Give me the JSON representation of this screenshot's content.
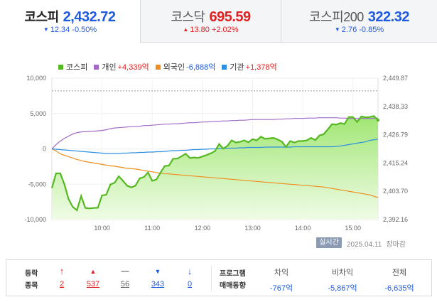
{
  "tabs": [
    {
      "name": "코스피",
      "value": "2,432.72",
      "change": "12.34",
      "pct": "-0.50%",
      "dir": "down",
      "active": true
    },
    {
      "name": "코스닥",
      "value": "695.59",
      "change": "13.80",
      "pct": "+2.02%",
      "dir": "up",
      "active": false
    },
    {
      "name": "코스피200",
      "value": "322.32",
      "change": "2.76",
      "pct": "-0.85%",
      "dir": "down",
      "active": false
    }
  ],
  "legend": [
    {
      "label": "코스피",
      "value": "",
      "color": "#55b821"
    },
    {
      "label": "개인",
      "value": "+4,339억",
      "color": "#a16ac7"
    },
    {
      "label": "외국인",
      "value": "-6,888억",
      "color": "#f08d1e"
    },
    {
      "label": "기관",
      "value": "+1,378억",
      "color": "#2f8fe0"
    }
  ],
  "status": {
    "badge": "실시간",
    "date": "2025.04.11",
    "state": "장마감"
  },
  "stocks": {
    "label1": "등락",
    "label2": "종목",
    "counts": [
      {
        "name": "upper-limit",
        "icon": "arrow-up-icon",
        "count": "2",
        "color": "#e02020"
      },
      {
        "name": "rise",
        "icon": "triangle-up-icon",
        "count": "537",
        "color": "#e02020"
      },
      {
        "name": "flat",
        "icon": "dash-icon",
        "count": "56",
        "color": "#666666"
      },
      {
        "name": "fall",
        "icon": "triangle-down-icon",
        "count": "343",
        "color": "#1e5ae0"
      },
      {
        "name": "lower-limit",
        "icon": "arrow-down-icon",
        "count": "0",
        "color": "#1e5ae0"
      }
    ]
  },
  "program": {
    "label1": "프로그램",
    "label2": "매매동향",
    "cols": [
      {
        "header": "차익",
        "value": "-767억"
      },
      {
        "header": "비차익",
        "value": "-5,867억"
      },
      {
        "header": "전체",
        "value": "-6,635억"
      }
    ]
  },
  "chart_data": {
    "type": "line",
    "title": "",
    "x_labels": [
      "10:00",
      "11:00",
      "12:00",
      "13:00",
      "14:00",
      "15:00"
    ],
    "left_axis": {
      "label": "",
      "ticks": [
        "10,000",
        "5,000",
        "0",
        "-5,000",
        "-10,000"
      ],
      "range": [
        -10000,
        10000
      ]
    },
    "right_axis": {
      "label": "",
      "ticks": [
        "2,449.87",
        "2,438.33",
        "2,426.79",
        "2,415.24",
        "2,403.70",
        "2,392.16"
      ],
      "range": [
        2392.16,
        2449.87
      ]
    },
    "reference_line": 2444.7,
    "x": [
      "09:00",
      "09:05",
      "09:10",
      "09:15",
      "09:20",
      "09:25",
      "09:30",
      "09:35",
      "09:40",
      "09:45",
      "09:50",
      "09:55",
      "10:00",
      "10:05",
      "10:10",
      "10:15",
      "10:20",
      "10:25",
      "10:30",
      "10:35",
      "10:40",
      "10:45",
      "10:50",
      "10:55",
      "11:00",
      "11:05",
      "11:10",
      "11:15",
      "11:20",
      "11:25",
      "11:30",
      "11:35",
      "11:40",
      "11:45",
      "11:50",
      "11:55",
      "12:00",
      "12:05",
      "12:10",
      "12:15",
      "12:20",
      "12:25",
      "12:30",
      "12:35",
      "12:40",
      "12:45",
      "12:50",
      "12:55",
      "13:00",
      "13:05",
      "13:10",
      "13:15",
      "13:20",
      "13:25",
      "13:30",
      "13:35",
      "13:40",
      "13:45",
      "13:50",
      "13:55",
      "14:00",
      "14:05",
      "14:10",
      "14:15",
      "14:20",
      "14:25",
      "14:30",
      "14:35",
      "14:40",
      "14:45",
      "14:50",
      "14:55",
      "15:00",
      "15:05",
      "15:10",
      "15:15",
      "15:20",
      "15:25",
      "15:30"
    ],
    "series": [
      {
        "name": "코스피",
        "axis": "right",
        "color": "#55b821",
        "values": [
          2405.0,
          2411.0,
          2411.0,
          2406.5,
          2400.5,
          2397.3,
          2396.0,
          2401.8,
          2396.9,
          2396.7,
          2396.9,
          2397.0,
          2402.0,
          2402.3,
          2406.5,
          2407.2,
          2409.8,
          2408.0,
          2406.0,
          2405.3,
          2406.0,
          2409.0,
          2409.5,
          2411.4,
          2408.0,
          2408.5,
          2411.4,
          2414.0,
          2414.2,
          2417.0,
          2417.0,
          2418.0,
          2419.0,
          2417.3,
          2417.5,
          2417.3,
          2417.9,
          2418.5,
          2419.2,
          2420.1,
          2423.0,
          2421.1,
          2422.3,
          2424.5,
          2423.6,
          2423.9,
          2424.5,
          2423.7,
          2425.0,
          2424.5,
          2426.0,
          2425.1,
          2425.3,
          2425.5,
          2424.8,
          2424.0,
          2421.8,
          2424.2,
          2423.6,
          2424.2,
          2424.2,
          2424.5,
          2425.5,
          2424.6,
          2426.5,
          2427.0,
          2429.0,
          2431.1,
          2430.9,
          2431.5,
          2431.2,
          2434.0,
          2434.0,
          2432.0,
          2434.2,
          2433.9,
          2434.0,
          2434.4,
          2432.72
        ]
      },
      {
        "name": "개인",
        "axis": "left",
        "color": "#a16ac7",
        "values": [
          0,
          600,
          1100,
          1500,
          1800,
          2100,
          2300,
          2400,
          2450,
          2500,
          2500,
          2550,
          2600,
          2700,
          2850,
          2950,
          3000,
          3050,
          3100,
          3150,
          3150,
          3200,
          3300,
          3300,
          3350,
          3400,
          3450,
          3500,
          3500,
          3550,
          3550,
          3600,
          3650,
          3700,
          3700,
          3750,
          3800,
          3800,
          3850,
          3900,
          3900,
          3950,
          3950,
          4000,
          4000,
          4050,
          4050,
          4100,
          4150,
          4150,
          4150,
          4150,
          4150,
          4150,
          4200,
          4200,
          4250,
          4250,
          4300,
          4300,
          4300,
          4350,
          4350,
          4350,
          4400,
          4400,
          4400,
          4400,
          4400,
          4350,
          4350,
          4300,
          4300,
          4300,
          4300,
          4300,
          4300,
          4300,
          4339
        ]
      },
      {
        "name": "외국인",
        "axis": "left",
        "color": "#f08d1e",
        "values": [
          0,
          -300,
          -700,
          -900,
          -1100,
          -1300,
          -1500,
          -1650,
          -1800,
          -1900,
          -2000,
          -2100,
          -2200,
          -2300,
          -2400,
          -2450,
          -2550,
          -2650,
          -2750,
          -2800,
          -2850,
          -2950,
          -3050,
          -3150,
          -3250,
          -3350,
          -3450,
          -3500,
          -3550,
          -3600,
          -3650,
          -3700,
          -3750,
          -3800,
          -3850,
          -3900,
          -3950,
          -4000,
          -4050,
          -4100,
          -4150,
          -4200,
          -4250,
          -4300,
          -4350,
          -4400,
          -4450,
          -4500,
          -4550,
          -4600,
          -4650,
          -4700,
          -4750,
          -4800,
          -4850,
          -4900,
          -4950,
          -5000,
          -5050,
          -5100,
          -5150,
          -5200,
          -5250,
          -5300,
          -5350,
          -5400,
          -5500,
          -5600,
          -5700,
          -5800,
          -5900,
          -6000,
          -6100,
          -6200,
          -6300,
          -6400,
          -6500,
          -6700,
          -6888
        ]
      },
      {
        "name": "기관",
        "axis": "left",
        "color": "#2f8fe0",
        "values": [
          0,
          -50,
          -100,
          -150,
          -200,
          -250,
          -300,
          -350,
          -400,
          -450,
          -500,
          -550,
          -600,
          -650,
          -650,
          -650,
          -650,
          -600,
          -600,
          -550,
          -550,
          -500,
          -500,
          -450,
          -450,
          -400,
          -400,
          -350,
          -300,
          -250,
          -250,
          -200,
          -200,
          -150,
          -100,
          -100,
          -50,
          -50,
          0,
          0,
          50,
          50,
          100,
          100,
          100,
          150,
          150,
          200,
          200,
          200,
          200,
          250,
          250,
          250,
          250,
          250,
          250,
          250,
          300,
          300,
          300,
          300,
          300,
          300,
          300,
          300,
          300,
          300,
          350,
          400,
          500,
          600,
          700,
          800,
          900,
          1000,
          1200,
          1300,
          1378
        ]
      }
    ]
  }
}
